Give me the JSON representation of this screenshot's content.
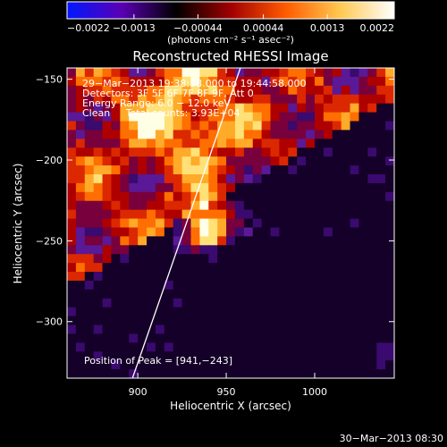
{
  "colorbar": {
    "ticks": [
      {
        "value": -0.0022,
        "label": "−0.0022"
      },
      {
        "value": -0.0013,
        "label": "−0.0013"
      },
      {
        "value": -0.00044,
        "label": "−0.00044"
      },
      {
        "value": 0.00044,
        "label": "0.00044"
      },
      {
        "value": 0.0013,
        "label": "0.0013"
      },
      {
        "value": 0.0022,
        "label": "0.0022"
      }
    ],
    "range": [
      -0.0022,
      0.0022
    ],
    "unit_label": "(photons cm⁻² s⁻¹ asec⁻²)",
    "colors": [
      "#0018ff",
      "#5a00b4",
      "#000000",
      "#a00000",
      "#ff5a00",
      "#ffc850",
      "#ffffff"
    ]
  },
  "chart_data": {
    "type": "heatmap",
    "title": "Reconstructed RHESSI Image",
    "xlabel": "Heliocentric X (arcsec)",
    "ylabel": "Heliocentric Y (arcsec)",
    "xlim": [
      860,
      1045
    ],
    "ylim": [
      -335,
      -143
    ],
    "x_ticks": [
      {
        "value": 900,
        "label": "900"
      },
      {
        "value": 950,
        "label": "950"
      },
      {
        "value": 1000,
        "label": "1000"
      }
    ],
    "y_ticks": [
      {
        "value": -150,
        "label": "−150"
      },
      {
        "value": -200,
        "label": "−200"
      },
      {
        "value": -250,
        "label": "−250"
      },
      {
        "value": -300,
        "label": "−300"
      }
    ],
    "annotations": [
      "29−Mar−2013 19:38:58.000 to 19:44:58.000",
      "Detectors: 3F 5F 6F 7F 8F 9F, Att 0",
      "Energy Range: 6.0 − 12.0 keV",
      "Clean     Total counts: 3.93E+04"
    ],
    "peak_label": "Position of Peak = [941,−243]",
    "peak": {
      "x": 941,
      "y": -243
    },
    "limb_line": [
      {
        "x": 897,
        "y": -335
      },
      {
        "x": 958,
        "y": -143
      }
    ]
  },
  "footer": {
    "timestamp": "30−Mar−2013 08:30"
  }
}
